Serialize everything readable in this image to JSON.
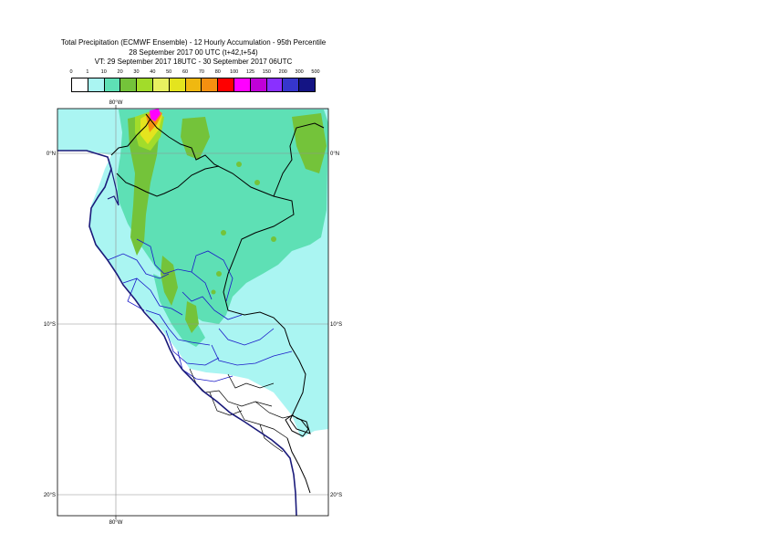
{
  "title": {
    "line1": "Total Precipitation (ECMWF Ensemble) - 12 Hourly Accumulation - 95th Percentile",
    "line2": "28 September 2017 00 UTC (t+42,t+54)",
    "line3": "VT: 29 September 2017 18UTC - 30 September 2017 06UTC"
  },
  "legend": {
    "thresholds": [
      "0",
      "1",
      "10",
      "20",
      "30",
      "40",
      "50",
      "60",
      "70",
      "80",
      "100",
      "125",
      "150",
      "200",
      "300",
      "500"
    ],
    "colors": [
      "#ffffff",
      "#aaf5f2",
      "#5ee0b5",
      "#74c33a",
      "#a2dc2a",
      "#e8f060",
      "#e4e41e",
      "#f0b810",
      "#f59010",
      "#ff0000",
      "#ff00ff",
      "#c000d8",
      "#8a30ff",
      "#3636cc",
      "#141484"
    ]
  },
  "map": {
    "lon_labels": {
      "top": "80°W",
      "bottom": "80°W"
    },
    "lat_labels": {
      "lat0_left": "0°N",
      "lat0_right": "0°N",
      "lat10_left": "10°S",
      "lat10_right": "10°S",
      "lat20_left": "20°S",
      "lat20_right": "20°S"
    },
    "colors": {
      "low": "#aaf5f2",
      "medium": "#5ee0b5",
      "high": "#74c33a",
      "very_high": "#a2dc2a",
      "extreme": "#ff00ff",
      "border": "#000000",
      "region": "#1a1ac8",
      "coast": "#1a1a7a"
    }
  }
}
